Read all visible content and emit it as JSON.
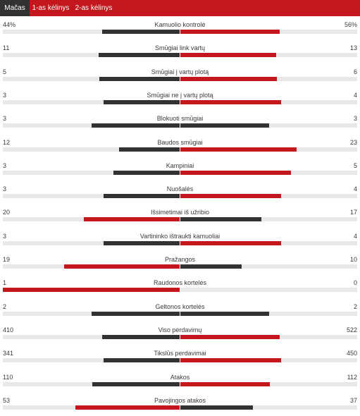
{
  "tabs": [
    {
      "label": "Mačas",
      "active": true
    },
    {
      "label": "1-as kėlinys",
      "active": false
    },
    {
      "label": "2-as kėlinys",
      "active": false
    }
  ],
  "colors": {
    "tab_bar": "#c4171d",
    "tab_active": "#323232",
    "higher_value": "#c4171d",
    "lower_value": "#323232",
    "track": "#e8e8e8"
  },
  "stats": [
    {
      "label": "Kamuolio kontrolė",
      "left": "44%",
      "right": "56%",
      "left_share": 0.44,
      "right_share": 0.56
    },
    {
      "label": "Smūgiai link vartų",
      "left": "11",
      "right": "13",
      "left_share": 0.458,
      "right_share": 0.542
    },
    {
      "label": "Smūgiai į vartų plotą",
      "left": "5",
      "right": "6",
      "left_share": 0.455,
      "right_share": 0.545
    },
    {
      "label": "Smūgiai ne į vartų plotą",
      "left": "3",
      "right": "4",
      "left_share": 0.429,
      "right_share": 0.571
    },
    {
      "label": "Blokuoti smūgiai",
      "left": "3",
      "right": "3",
      "left_share": 0.5,
      "right_share": 0.5
    },
    {
      "label": "Baudos smūgiai",
      "left": "12",
      "right": "23",
      "left_share": 0.343,
      "right_share": 0.657
    },
    {
      "label": "Kampiniai",
      "left": "3",
      "right": "5",
      "left_share": 0.375,
      "right_share": 0.625
    },
    {
      "label": "Nuošalės",
      "left": "3",
      "right": "4",
      "left_share": 0.429,
      "right_share": 0.571
    },
    {
      "label": "Išsimetimai iš užribio",
      "left": "20",
      "right": "17",
      "left_share": 0.541,
      "right_share": 0.459
    },
    {
      "label": "Vartininko ištraukti kamuoliai",
      "left": "3",
      "right": "4",
      "left_share": 0.429,
      "right_share": 0.571
    },
    {
      "label": "Pražangos",
      "left": "19",
      "right": "10",
      "left_share": 0.655,
      "right_share": 0.345
    },
    {
      "label": "Raudonos kortelės",
      "left": "1",
      "right": "0",
      "left_share": 1.0,
      "right_share": 0.0
    },
    {
      "label": "Geltonos kortelės",
      "left": "2",
      "right": "2",
      "left_share": 0.5,
      "right_share": 0.5
    },
    {
      "label": "Viso perdavimų",
      "left": "410",
      "right": "522",
      "left_share": 0.44,
      "right_share": 0.56
    },
    {
      "label": "Tikslūs perdavimai",
      "left": "341",
      "right": "450",
      "left_share": 0.431,
      "right_share": 0.569
    },
    {
      "label": "Atakos",
      "left": "110",
      "right": "112",
      "left_share": 0.495,
      "right_share": 0.505
    },
    {
      "label": "Pavojingos atakos",
      "left": "53",
      "right": "37",
      "left_share": 0.589,
      "right_share": 0.411
    }
  ]
}
